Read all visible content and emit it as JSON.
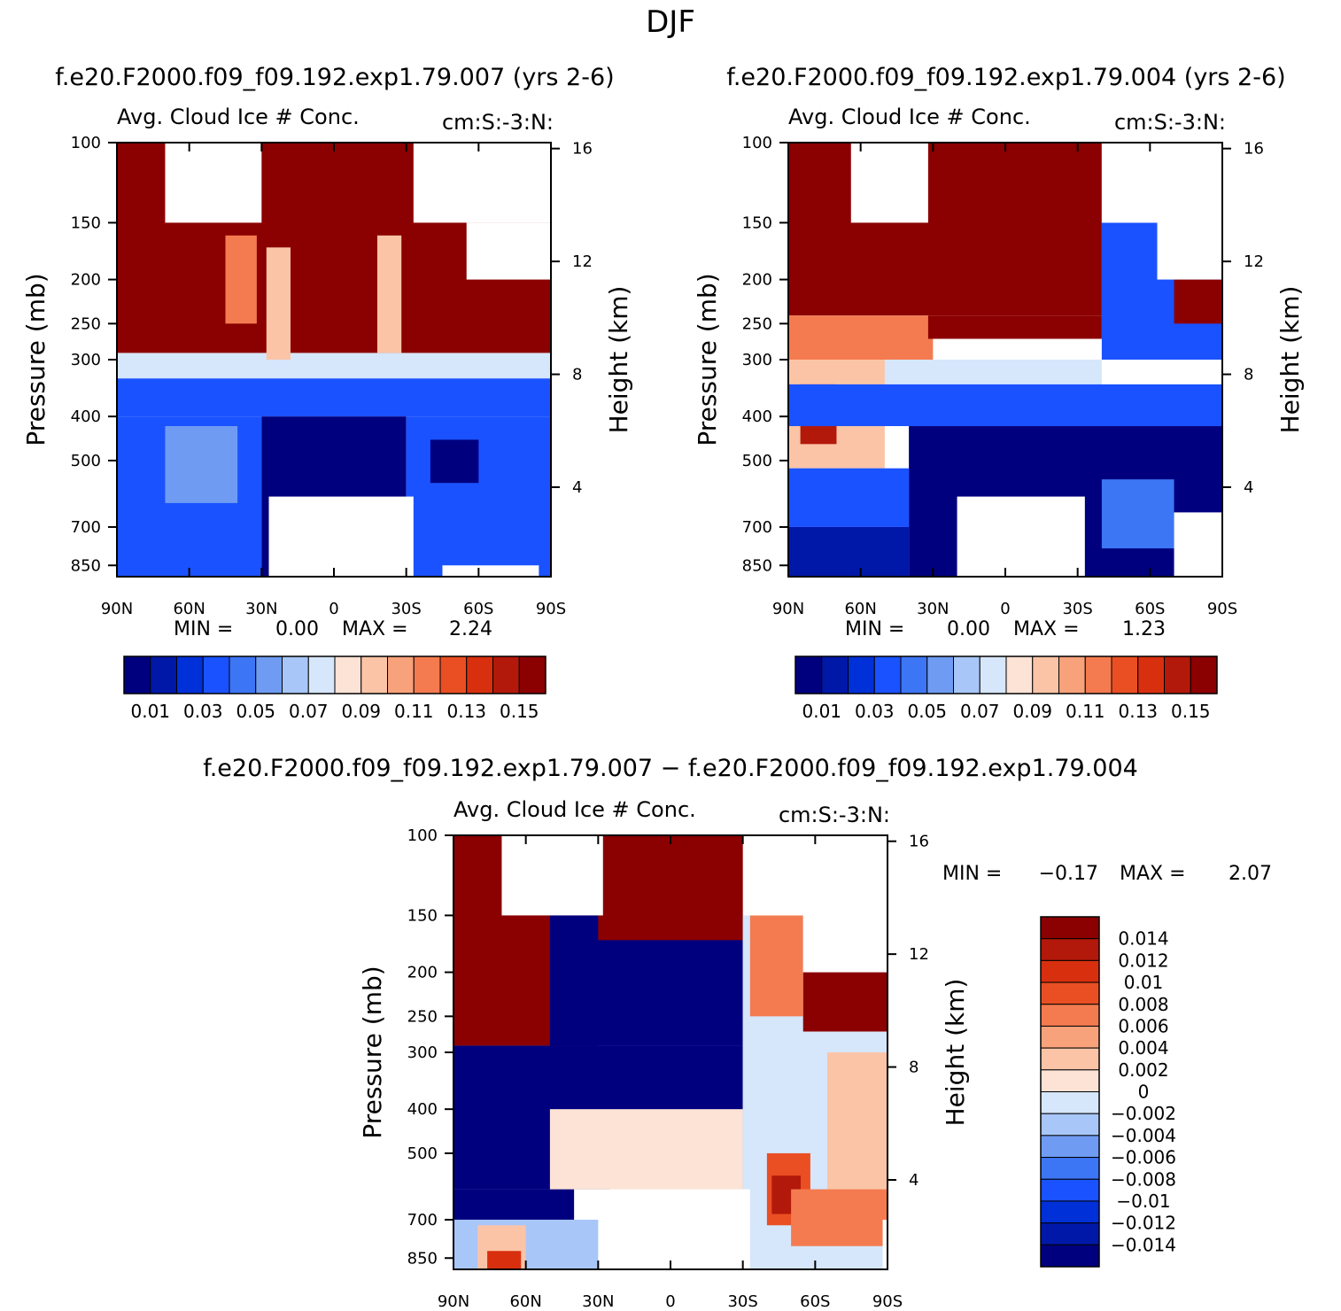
{
  "title": "DJF",
  "palettes": {
    "abs": [
      "#00007f",
      "#0018a8",
      "#0030d8",
      "#1a52ff",
      "#3d76f5",
      "#6f9cf2",
      "#a8c6f8",
      "#d6e6fb",
      "#fde3d5",
      "#fbc4a6",
      "#f8a27b",
      "#f47b50",
      "#ea4f23",
      "#d8300f",
      "#b2190a",
      "#8b0000"
    ],
    "diff": [
      "#00007f",
      "#0018a8",
      "#0030d8",
      "#1a52ff",
      "#3d76f5",
      "#6f9cf2",
      "#a8c6f8",
      "#d6e6fb",
      "#fde3d5",
      "#fbc4a6",
      "#f8a27b",
      "#f47b50",
      "#ea4f23",
      "#d8300f",
      "#b2190a",
      "#8b0000"
    ]
  },
  "chart_data": [
    {
      "type": "heatmap",
      "title": "f.e20.F2000.f09_f09.192.exp1.79.007 (yrs 2-6)",
      "left_label": "Avg. Cloud Ice # Conc.",
      "right_label": "cm:S:-3:N:",
      "xlabel": "",
      "ylabel": "Pressure (mb)",
      "ylabel_right": "Height (km)",
      "x_ticks": [
        "90N",
        "60N",
        "30N",
        "0",
        "30S",
        "60S",
        "90S"
      ],
      "y_ticks": [
        100,
        150,
        200,
        250,
        300,
        400,
        500,
        700,
        850
      ],
      "height_ticks": [
        16,
        12,
        8,
        4
      ],
      "xlim": [
        90,
        -90
      ],
      "ylim": [
        100,
        900
      ],
      "y_scale": "log",
      "min_label": "MIN =",
      "min_value": "0.00",
      "max_label": "MAX =",
      "max_value": "2.24",
      "colorbar_labels": [
        "0.01",
        "0.03",
        "0.05",
        "0.07",
        "0.09",
        "0.11",
        "0.13",
        "0.15"
      ],
      "regions": [
        {
          "level": 15,
          "lat": [
            90,
            -90
          ],
          "p": [
            100,
            290
          ]
        },
        {
          "level": 7,
          "lat": [
            90,
            -90
          ],
          "p": [
            290,
            330
          ]
        },
        {
          "level": 3,
          "lat": [
            90,
            -90
          ],
          "p": [
            330,
            400
          ]
        },
        {
          "level": 3,
          "lat": [
            90,
            30
          ],
          "p": [
            400,
            900
          ]
        },
        {
          "level": 0,
          "lat": [
            30,
            -30
          ],
          "p": [
            400,
            900
          ]
        },
        {
          "level": 3,
          "lat": [
            -30,
            -90
          ],
          "p": [
            400,
            900
          ]
        },
        {
          "level": 5,
          "lat": [
            70,
            40
          ],
          "p": [
            420,
            620
          ]
        },
        {
          "level": 0,
          "lat": [
            -40,
            -60
          ],
          "p": [
            450,
            560
          ]
        },
        {
          "level": 11,
          "lat": [
            45,
            32
          ],
          "p": [
            160,
            250
          ]
        },
        {
          "level": 9,
          "lat": [
            28,
            18
          ],
          "p": [
            170,
            300
          ]
        },
        {
          "level": 9,
          "lat": [
            -18,
            -28
          ],
          "p": [
            160,
            290
          ]
        },
        {
          "level": 15,
          "lat": [
            -65,
            -90
          ],
          "p": [
            200,
            260
          ]
        }
      ],
      "missing": [
        {
          "lat": [
            70,
            30
          ],
          "p": [
            100,
            150
          ]
        },
        {
          "lat": [
            -33,
            -90
          ],
          "p": [
            100,
            150
          ]
        },
        {
          "lat": [
            -55,
            -90
          ],
          "p": [
            150,
            200
          ]
        },
        {
          "lat": [
            27,
            -33
          ],
          "p": [
            600,
            900
          ]
        },
        {
          "lat": [
            -45,
            -85
          ],
          "p": [
            850,
            900
          ]
        }
      ]
    },
    {
      "type": "heatmap",
      "title": "f.e20.F2000.f09_f09.192.exp1.79.004 (yrs 2-6)",
      "left_label": "Avg. Cloud Ice # Conc.",
      "right_label": "cm:S:-3:N:",
      "xlabel": "",
      "ylabel": "Pressure (mb)",
      "ylabel_right": "Height (km)",
      "x_ticks": [
        "90N",
        "60N",
        "30N",
        "0",
        "30S",
        "60S",
        "90S"
      ],
      "y_ticks": [
        100,
        150,
        200,
        250,
        300,
        400,
        500,
        700,
        850
      ],
      "height_ticks": [
        16,
        12,
        8,
        4
      ],
      "xlim": [
        90,
        -90
      ],
      "ylim": [
        100,
        900
      ],
      "y_scale": "log",
      "min_label": "MIN =",
      "min_value": "0.00",
      "max_label": "MAX =",
      "max_value": "1.23",
      "colorbar_labels": [
        "0.01",
        "0.03",
        "0.05",
        "0.07",
        "0.09",
        "0.11",
        "0.13",
        "0.15"
      ],
      "regions": [
        {
          "level": 15,
          "lat": [
            90,
            -40
          ],
          "p": [
            100,
            240
          ]
        },
        {
          "level": 11,
          "lat": [
            90,
            30
          ],
          "p": [
            240,
            300
          ]
        },
        {
          "level": 15,
          "lat": [
            32,
            -40
          ],
          "p": [
            240,
            270
          ]
        },
        {
          "level": 7,
          "lat": [
            90,
            -40
          ],
          "p": [
            300,
            340
          ]
        },
        {
          "level": 9,
          "lat": [
            90,
            50
          ],
          "p": [
            300,
            520
          ]
        },
        {
          "level": 14,
          "lat": [
            85,
            70
          ],
          "p": [
            340,
            460
          ]
        },
        {
          "level": 3,
          "lat": [
            90,
            -90
          ],
          "p": [
            340,
            420
          ]
        },
        {
          "level": 0,
          "lat": [
            40,
            -90
          ],
          "p": [
            420,
            900
          ]
        },
        {
          "level": 3,
          "lat": [
            90,
            40
          ],
          "p": [
            520,
            700
          ]
        },
        {
          "level": 1,
          "lat": [
            90,
            40
          ],
          "p": [
            700,
            900
          ]
        },
        {
          "level": 4,
          "lat": [
            -40,
            -70
          ],
          "p": [
            550,
            780
          ]
        },
        {
          "level": 3,
          "lat": [
            -40,
            -90
          ],
          "p": [
            150,
            300
          ]
        },
        {
          "level": 15,
          "lat": [
            -70,
            -90
          ],
          "p": [
            200,
            250
          ]
        }
      ],
      "missing": [
        {
          "lat": [
            64,
            32
          ],
          "p": [
            100,
            150
          ]
        },
        {
          "lat": [
            -40,
            -90
          ],
          "p": [
            100,
            150
          ]
        },
        {
          "lat": [
            -63,
            -90
          ],
          "p": [
            150,
            200
          ]
        },
        {
          "lat": [
            20,
            -33
          ],
          "p": [
            600,
            900
          ]
        },
        {
          "lat": [
            -70,
            -90
          ],
          "p": [
            650,
            900
          ]
        }
      ]
    },
    {
      "type": "heatmap",
      "title": "f.e20.F2000.f09_f09.192.exp1.79.007 − f.e20.F2000.f09_f09.192.exp1.79.004",
      "left_label": "Avg. Cloud Ice # Conc.",
      "right_label": "cm:S:-3:N:",
      "xlabel": "",
      "ylabel": "Pressure (mb)",
      "ylabel_right": "Height (km)",
      "x_ticks": [
        "90N",
        "60N",
        "30N",
        "0",
        "30S",
        "60S",
        "90S"
      ],
      "y_ticks": [
        100,
        150,
        200,
        250,
        300,
        400,
        500,
        700,
        850
      ],
      "height_ticks": [
        16,
        12,
        8,
        4
      ],
      "xlim": [
        90,
        -90
      ],
      "ylim": [
        100,
        900
      ],
      "y_scale": "log",
      "min_label": "MIN =",
      "min_value": "−0.17",
      "max_label": "MAX =",
      "max_value": "2.07",
      "colorbar_labels": [
        "0.014",
        "0.012",
        "0.01",
        "0.008",
        "0.006",
        "0.004",
        "0.002",
        "0",
        "−0.002",
        "−0.004",
        "−0.006",
        "−0.008",
        "−0.01",
        "−0.012",
        "−0.014"
      ],
      "regions": [
        {
          "level": 15,
          "lat": [
            90,
            30
          ],
          "p": [
            100,
            290
          ]
        },
        {
          "level": 0,
          "lat": [
            50,
            -30
          ],
          "p": [
            150,
            290
          ]
        },
        {
          "level": 15,
          "lat": [
            30,
            -30
          ],
          "p": [
            100,
            170
          ]
        },
        {
          "level": 0,
          "lat": [
            90,
            -30
          ],
          "p": [
            290,
            600
          ]
        },
        {
          "level": 0,
          "lat": [
            90,
            40
          ],
          "p": [
            600,
            700
          ]
        },
        {
          "level": 8,
          "lat": [
            50,
            -30
          ],
          "p": [
            400,
            600
          ]
        },
        {
          "level": 7,
          "lat": [
            -30,
            -90
          ],
          "p": [
            150,
            900
          ]
        },
        {
          "level": 6,
          "lat": [
            90,
            30
          ],
          "p": [
            700,
            900
          ]
        },
        {
          "level": 9,
          "lat": [
            80,
            60
          ],
          "p": [
            720,
            900
          ]
        },
        {
          "level": 13,
          "lat": [
            76,
            62
          ],
          "p": [
            820,
            900
          ]
        },
        {
          "level": 9,
          "lat": [
            -65,
            -90
          ],
          "p": [
            300,
            600
          ]
        },
        {
          "level": 12,
          "lat": [
            -40,
            -58
          ],
          "p": [
            500,
            720
          ]
        },
        {
          "level": 14,
          "lat": [
            -42,
            -54
          ],
          "p": [
            560,
            680
          ]
        },
        {
          "level": 11,
          "lat": [
            -50,
            -90
          ],
          "p": [
            600,
            800
          ]
        },
        {
          "level": 15,
          "lat": [
            -55,
            -90
          ],
          "p": [
            200,
            270
          ]
        },
        {
          "level": 11,
          "lat": [
            -33,
            -55
          ],
          "p": [
            150,
            250
          ]
        }
      ],
      "missing": [
        {
          "lat": [
            70,
            28
          ],
          "p": [
            100,
            150
          ]
        },
        {
          "lat": [
            -33,
            -90
          ],
          "p": [
            100,
            150
          ]
        },
        {
          "lat": [
            -55,
            -90
          ],
          "p": [
            150,
            200
          ]
        },
        {
          "lat": [
            25,
            -33
          ],
          "p": [
            600,
            900
          ]
        },
        {
          "lat": [
            -88,
            -90
          ],
          "p": [
            700,
            900
          ]
        }
      ]
    }
  ]
}
